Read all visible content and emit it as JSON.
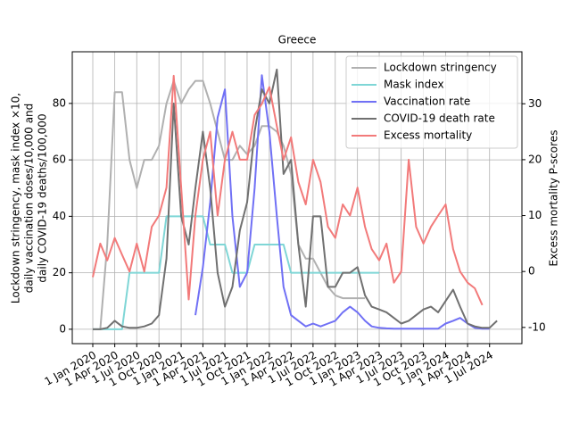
{
  "chart_data": {
    "type": "line",
    "title": "Greece",
    "ylabel": [
      "Lockdown stringency, mask index ×10,",
      "daily vaccination doses/10,000 and",
      "daily COVID-19 deaths/100,000"
    ],
    "y2label": "Excess mortality P-scores",
    "x": [
      "2020-01-01",
      "2020-02-01",
      "2020-03-01",
      "2020-04-01",
      "2020-05-01",
      "2020-06-01",
      "2020-07-01",
      "2020-08-01",
      "2020-09-01",
      "2020-10-01",
      "2020-11-01",
      "2020-12-01",
      "2021-01-01",
      "2021-02-01",
      "2021-03-01",
      "2021-04-01",
      "2021-05-01",
      "2021-06-01",
      "2021-07-01",
      "2021-08-01",
      "2021-09-01",
      "2021-10-01",
      "2021-11-01",
      "2021-12-01",
      "2022-01-01",
      "2022-02-01",
      "2022-03-01",
      "2022-04-01",
      "2022-05-01",
      "2022-06-01",
      "2022-07-01",
      "2022-08-01",
      "2022-09-01",
      "2022-10-01",
      "2022-11-01",
      "2022-12-01",
      "2023-01-01",
      "2023-02-01",
      "2023-03-01",
      "2023-04-01",
      "2023-05-01",
      "2023-06-01",
      "2023-07-01",
      "2023-08-01",
      "2023-09-01",
      "2023-10-01",
      "2023-11-01",
      "2023-12-01",
      "2024-01-01",
      "2024-02-01",
      "2024-03-01",
      "2024-04-01",
      "2024-05-01",
      "2024-06-01",
      "2024-07-01",
      "2024-08-01"
    ],
    "series": [
      {
        "name": "Lockdown stringency",
        "color": "#b0b0b0",
        "values": [
          0,
          0,
          30,
          84,
          84,
          60,
          50,
          60,
          60,
          65,
          80,
          88,
          80,
          85,
          88,
          88,
          80,
          70,
          60,
          60,
          65,
          62,
          65,
          72,
          72,
          70,
          65,
          55,
          30,
          25,
          25,
          20,
          15,
          12,
          11,
          11,
          11,
          11,
          null,
          null,
          null,
          null,
          null,
          null,
          null,
          null,
          null,
          null,
          null,
          null,
          null,
          null,
          null,
          null,
          null,
          null
        ]
      },
      {
        "name": "Mask index",
        "color": "#7fd6d6",
        "values": [
          0,
          0,
          0,
          0,
          0,
          20,
          20,
          20,
          20,
          20,
          40,
          40,
          40,
          40,
          40,
          40,
          30,
          30,
          30,
          20,
          20,
          20,
          30,
          30,
          30,
          30,
          30,
          20,
          20,
          20,
          20,
          20,
          20,
          20,
          20,
          20,
          20,
          20,
          20,
          20,
          null,
          null,
          null,
          null,
          null,
          null,
          null,
          null,
          null,
          null,
          null,
          null,
          null,
          null,
          null,
          null
        ]
      },
      {
        "name": "Vaccination rate",
        "color": "#7070f5",
        "values": [
          null,
          null,
          null,
          null,
          null,
          null,
          null,
          null,
          null,
          null,
          null,
          null,
          null,
          null,
          5,
          22,
          45,
          75,
          85,
          40,
          15,
          20,
          50,
          90,
          70,
          40,
          15,
          5,
          3,
          1,
          2,
          1,
          2,
          3,
          6,
          8,
          6,
          3,
          1,
          0.5,
          0.3,
          0.2,
          0.2,
          0.2,
          0.2,
          0.2,
          0.2,
          0.2,
          2,
          3,
          4,
          2,
          0.5,
          0.2,
          0.2,
          null
        ]
      },
      {
        "name": "COVID-19 death rate",
        "color": "#707070",
        "values": [
          0,
          0,
          0.5,
          3,
          1,
          0.5,
          0.5,
          1,
          2,
          5,
          25,
          80,
          40,
          30,
          50,
          70,
          50,
          20,
          8,
          15,
          35,
          45,
          70,
          85,
          80,
          92,
          55,
          60,
          30,
          8,
          40,
          40,
          15,
          15,
          20,
          20,
          22,
          12,
          8,
          7,
          6,
          4,
          2,
          3,
          5,
          7,
          8,
          6,
          10,
          14,
          8,
          2,
          1,
          0.5,
          0.5,
          3
        ]
      },
      {
        "name": "Excess mortality",
        "color": "#f27a7a",
        "axis": "y2",
        "values": [
          -1,
          5,
          2,
          6,
          3,
          0,
          5,
          0,
          8,
          10,
          15,
          35,
          15,
          -5,
          10,
          20,
          25,
          10,
          20,
          25,
          20,
          20,
          28,
          30,
          33,
          26,
          20,
          24,
          16,
          12,
          20,
          16,
          8,
          6,
          12,
          10,
          15,
          8,
          4,
          2,
          5,
          -2,
          0,
          20,
          8,
          5,
          8,
          10,
          12,
          4,
          0,
          -2,
          -3,
          -6,
          null,
          null
        ]
      }
    ],
    "xlim": [
      "2019-10-08",
      "2024-11-12"
    ],
    "xticks": [
      {
        "value": "2020-01-01",
        "label": "1 Jan 2020"
      },
      {
        "value": "2020-04-01",
        "label": "1 Apr 2020"
      },
      {
        "value": "2020-07-01",
        "label": "1 Jul 2020"
      },
      {
        "value": "2020-10-01",
        "label": "1 Oct 2020"
      },
      {
        "value": "2021-01-01",
        "label": "1 Jan 2021"
      },
      {
        "value": "2021-04-01",
        "label": "1 Apr 2021"
      },
      {
        "value": "2021-07-01",
        "label": "1 Jul 2021"
      },
      {
        "value": "2021-10-01",
        "label": "1 Oct 2021"
      },
      {
        "value": "2022-01-01",
        "label": "1 Jan 2022"
      },
      {
        "value": "2022-04-01",
        "label": "1 Apr 2022"
      },
      {
        "value": "2022-07-01",
        "label": "1 Jul 2022"
      },
      {
        "value": "2022-10-01",
        "label": "1 Oct 2022"
      },
      {
        "value": "2023-01-01",
        "label": "1 Jan 2023"
      },
      {
        "value": "2023-04-01",
        "label": "1 Apr 2023"
      },
      {
        "value": "2023-07-01",
        "label": "1 Jul 2023"
      },
      {
        "value": "2023-10-01",
        "label": "1 Oct 2023"
      },
      {
        "value": "2024-01-01",
        "label": "1 Jan 2024"
      },
      {
        "value": "2024-04-01",
        "label": "1 Apr 2024"
      },
      {
        "value": "2024-07-01",
        "label": "1 Jul 2024"
      }
    ],
    "ylim": [
      -5.1,
      98.3
    ],
    "yticks": [
      0,
      20,
      40,
      60,
      80
    ],
    "y2lim": [
      -12.9,
      39.3
    ],
    "y2ticks": [
      -10,
      0,
      10,
      20,
      30
    ],
    "grid": true,
    "legend": "upper right"
  }
}
